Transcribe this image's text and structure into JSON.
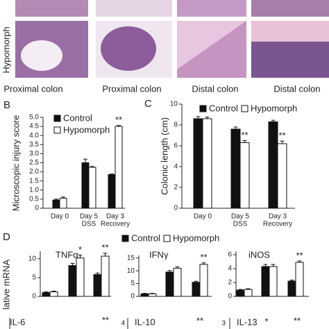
{
  "histology": {
    "row_label": "Hypomorph",
    "columns": [
      "Proximal colon",
      "Proximal colon",
      "Distal colon",
      "Distal colon"
    ]
  },
  "chart_data": [
    {
      "type": "bar",
      "label": "B",
      "y_label": "Microscopic injury score",
      "categories": [
        [
          "Day 0"
        ],
        [
          "Day 5",
          "DSS"
        ],
        [
          "Day 3",
          "Recovery"
        ]
      ],
      "series": [
        {
          "name": "Control",
          "color": "#111111",
          "values": [
            0.45,
            2.5,
            1.85
          ],
          "errors": [
            0.05,
            0.2,
            0.03
          ],
          "annotations": [
            null,
            null,
            null
          ]
        },
        {
          "name": "Hypomorph",
          "color": "#ffffff",
          "values": [
            0.55,
            2.25,
            4.5
          ],
          "errors": [
            0.07,
            0.05,
            0.05
          ],
          "annotations": [
            null,
            null,
            "**"
          ]
        }
      ],
      "ylim": [
        0,
        5
      ],
      "yticks": [
        0,
        {
          "value": 0.5,
          "label": "0.5"
        },
        {
          "value": 1,
          "label": "1.0"
        },
        {
          "value": 1.5,
          "label": "1.5"
        },
        {
          "value": 2,
          "label": "2.0"
        },
        {
          "value": 2.5,
          "label": "2.5"
        },
        {
          "value": 3,
          "label": "3.0"
        },
        {
          "value": 3.5,
          "label": "3.5"
        },
        {
          "value": 4,
          "label": "4.0"
        },
        {
          "value": 4.5,
          "label": "4.5"
        },
        {
          "value": 5,
          "label": "5.0"
        }
      ]
    },
    {
      "type": "bar",
      "label": "C",
      "y_label": "Colonic length (cm)",
      "categories": [
        [
          "Day 0"
        ],
        [
          "Day 5",
          "DSS"
        ],
        [
          "Day 3",
          "Recovery"
        ]
      ],
      "series": [
        {
          "name": "Control",
          "color": "#111111",
          "values": [
            8.6,
            7.6,
            8.3
          ],
          "errors": [
            0.2,
            0.2,
            0.15
          ],
          "annotations": [
            null,
            null,
            null
          ]
        },
        {
          "name": "Hypomorph",
          "color": "#ffffff",
          "values": [
            8.6,
            6.3,
            6.2
          ],
          "errors": [
            0.15,
            0.2,
            0.25
          ],
          "annotations": [
            null,
            "**",
            "**"
          ]
        }
      ],
      "ylim": [
        0,
        10
      ],
      "yticks": [
        0,
        2,
        4,
        6,
        8,
        10
      ]
    },
    {
      "type": "bar",
      "label": "D",
      "y_label": "lative mRNA",
      "title": "TNFα",
      "categories": [
        null,
        null,
        null
      ],
      "series": [
        {
          "name": "Control",
          "color": "#111111",
          "values": [
            1.0,
            8.2,
            5.8
          ],
          "errors": [
            0.2,
            0.6,
            0.4
          ],
          "annotations": [
            null,
            null,
            null
          ]
        },
        {
          "name": "Hypomorph",
          "color": "#ffffff",
          "values": [
            1.2,
            10.2,
            10.7
          ],
          "errors": [
            0.2,
            0.8,
            0.8
          ],
          "annotations": [
            null,
            "*",
            "**"
          ]
        }
      ],
      "ylim": [
        0,
        12
      ],
      "yticks": [
        0,
        5,
        10
      ]
    },
    {
      "type": "bar",
      "title": "IFNγ",
      "categories": [
        null,
        null,
        null
      ],
      "series": [
        {
          "color": "#111111",
          "values": [
            1.0,
            9.5,
            5.5
          ],
          "errors": [
            0.2,
            0.6,
            0.4
          ],
          "annotations": [
            null,
            null,
            null
          ]
        },
        {
          "color": "#ffffff",
          "values": [
            1.0,
            11,
            12.5
          ],
          "errors": [
            0.2,
            0.6,
            0.6
          ],
          "annotations": [
            null,
            null,
            "**"
          ]
        }
      ],
      "ylim": [
        0,
        16
      ],
      "yticks": [
        0,
        5,
        10,
        15
      ]
    },
    {
      "type": "bar",
      "title": "iNOS",
      "categories": [
        null,
        null,
        null
      ],
      "series": [
        {
          "color": "#111111",
          "values": [
            0.9,
            4.3,
            2.2
          ],
          "errors": [
            0.1,
            0.3,
            0.15
          ],
          "annotations": [
            null,
            null,
            null
          ]
        },
        {
          "color": "#ffffff",
          "values": [
            1.0,
            4.3,
            4.9
          ],
          "errors": [
            0.1,
            0.3,
            0.2
          ],
          "annotations": [
            null,
            null,
            "**"
          ]
        }
      ],
      "ylim": [
        0,
        6.5
      ],
      "yticks": [
        0,
        2,
        4,
        6
      ]
    }
  ],
  "cut_panels": [
    {
      "title": "IL-6",
      "marks": [
        "**"
      ]
    },
    {
      "title": "IL-10",
      "tick": "4",
      "marks": [
        "**"
      ]
    },
    {
      "title": "IL-13",
      "tick": "3",
      "marks": [
        "*",
        "**"
      ]
    }
  ]
}
